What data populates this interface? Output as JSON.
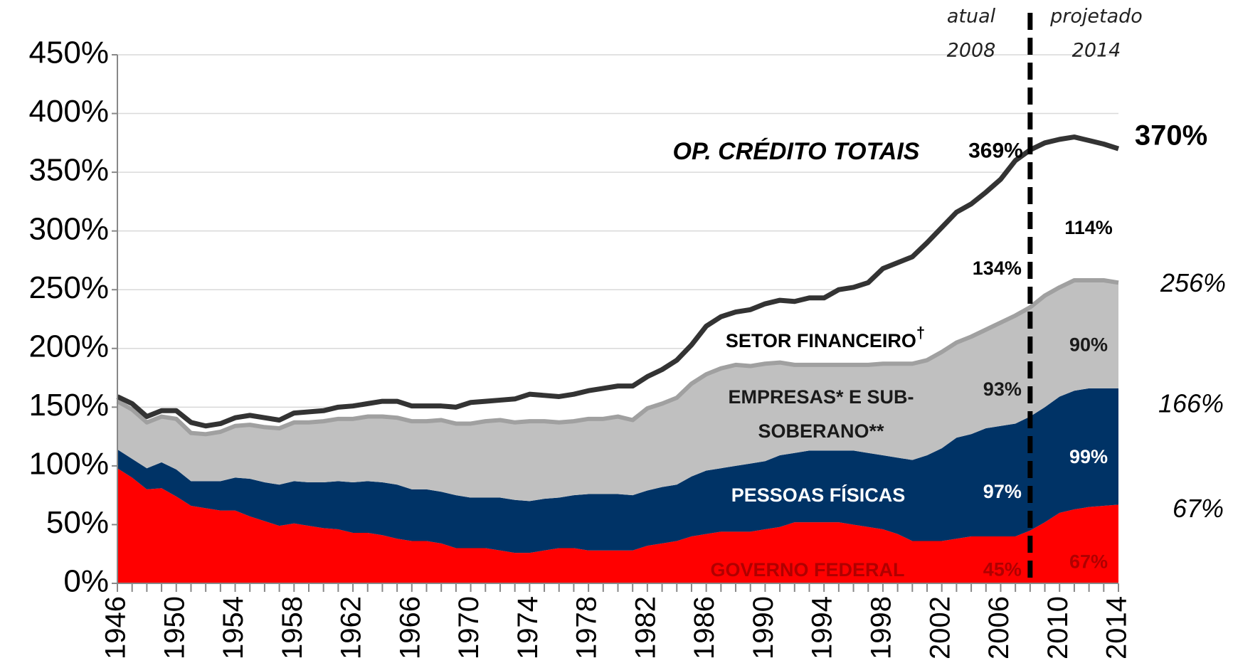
{
  "chart_data": {
    "type": "stacked_area",
    "x": [
      1946,
      1947,
      1948,
      1949,
      1950,
      1951,
      1952,
      1953,
      1954,
      1955,
      1956,
      1957,
      1958,
      1959,
      1960,
      1961,
      1962,
      1963,
      1964,
      1965,
      1966,
      1967,
      1968,
      1969,
      1970,
      1971,
      1972,
      1973,
      1974,
      1975,
      1976,
      1977,
      1978,
      1979,
      1980,
      1981,
      1982,
      1983,
      1984,
      1985,
      1986,
      1987,
      1988,
      1989,
      1990,
      1991,
      1992,
      1993,
      1994,
      1995,
      1996,
      1997,
      1998,
      1999,
      2000,
      2001,
      2002,
      2003,
      2004,
      2005,
      2006,
      2007,
      2008,
      2009,
      2010,
      2011,
      2012,
      2013,
      2014
    ],
    "series": [
      {
        "name": "GOVERNO FEDERAL",
        "color": "#ff0000",
        "label_color": "#b00000",
        "values": [
          98,
          90,
          80,
          81,
          74,
          66,
          64,
          62,
          62,
          57,
          53,
          49,
          51,
          49,
          47,
          46,
          43,
          43,
          41,
          38,
          36,
          36,
          34,
          30,
          30,
          30,
          28,
          26,
          26,
          28,
          30,
          30,
          28,
          28,
          28,
          28,
          32,
          34,
          36,
          40,
          42,
          44,
          44,
          44,
          46,
          48,
          52,
          52,
          52,
          52,
          50,
          48,
          46,
          42,
          36,
          36,
          36,
          38,
          40,
          40,
          40,
          40,
          45,
          52,
          60,
          63,
          65,
          66,
          67
        ],
        "value_labels": [
          null,
          null,
          null,
          null,
          null,
          null,
          null,
          null,
          null,
          null,
          null,
          null,
          null,
          null,
          null,
          null,
          null,
          null,
          null,
          null,
          null,
          null,
          null,
          null,
          null,
          null,
          null,
          null,
          null,
          null,
          null,
          null,
          null,
          null,
          null,
          null,
          null,
          null,
          null,
          null,
          null,
          null,
          null,
          null,
          null,
          null,
          null,
          null,
          null,
          null,
          null,
          null,
          null,
          null,
          null,
          null,
          null,
          null,
          null,
          null,
          null,
          null,
          "45%",
          null,
          null,
          null,
          null,
          null,
          "67%"
        ]
      },
      {
        "name": "PESSOAS FÍSICAS",
        "color": "#003366",
        "label_color": "#ffffff",
        "values": [
          16,
          16,
          18,
          22,
          23,
          21,
          23,
          25,
          28,
          32,
          33,
          35,
          36,
          37,
          39,
          41,
          43,
          44,
          45,
          46,
          44,
          44,
          44,
          45,
          43,
          43,
          45,
          45,
          44,
          44,
          43,
          45,
          48,
          48,
          48,
          47,
          47,
          48,
          48,
          51,
          54,
          54,
          56,
          58,
          58,
          61,
          59,
          61,
          61,
          61,
          63,
          63,
          63,
          65,
          69,
          73,
          79,
          86,
          87,
          92,
          94,
          96,
          97,
          98,
          99,
          101,
          101,
          100,
          99
        ],
        "value_labels": [
          null,
          null,
          null,
          null,
          null,
          null,
          null,
          null,
          null,
          null,
          null,
          null,
          null,
          null,
          null,
          null,
          null,
          null,
          null,
          null,
          null,
          null,
          null,
          null,
          null,
          null,
          null,
          null,
          null,
          null,
          null,
          null,
          null,
          null,
          null,
          null,
          null,
          null,
          null,
          null,
          null,
          null,
          null,
          null,
          null,
          null,
          null,
          null,
          null,
          null,
          null,
          null,
          null,
          null,
          null,
          null,
          null,
          null,
          null,
          null,
          null,
          null,
          "97%",
          null,
          null,
          null,
          null,
          null,
          "99%"
        ]
      },
      {
        "name": "EMPRESAS* E SUB-SOBERANO**",
        "color": "#c0c0c0",
        "line_color": "#a0a0a0",
        "label_color": "#1a1a1a",
        "values": [
          41,
          42,
          39,
          39,
          43,
          41,
          40,
          42,
          44,
          46,
          47,
          48,
          50,
          51,
          52,
          53,
          54,
          55,
          56,
          57,
          58,
          58,
          61,
          61,
          63,
          65,
          66,
          66,
          68,
          66,
          64,
          63,
          64,
          64,
          66,
          64,
          70,
          71,
          74,
          79,
          82,
          85,
          86,
          83,
          83,
          79,
          75,
          73,
          73,
          73,
          73,
          75,
          78,
          80,
          82,
          81,
          82,
          81,
          83,
          84,
          88,
          92,
          93,
          95,
          93,
          94,
          92,
          92,
          90
        ],
        "value_labels": [
          null,
          null,
          null,
          null,
          null,
          null,
          null,
          null,
          null,
          null,
          null,
          null,
          null,
          null,
          null,
          null,
          null,
          null,
          null,
          null,
          null,
          null,
          null,
          null,
          null,
          null,
          null,
          null,
          null,
          null,
          null,
          null,
          null,
          null,
          null,
          null,
          null,
          null,
          null,
          null,
          null,
          null,
          null,
          null,
          null,
          null,
          null,
          null,
          null,
          null,
          null,
          null,
          null,
          null,
          null,
          null,
          null,
          null,
          null,
          null,
          null,
          null,
          "93%",
          null,
          null,
          null,
          null,
          null,
          "90%"
        ]
      },
      {
        "name": "SETOR FINANCEIRO†",
        "color": "#ffffff",
        "line_color": "#333333",
        "label_color": "#000000",
        "values": [
          4,
          5,
          5,
          5,
          7,
          9,
          7,
          7,
          7,
          8,
          8,
          7,
          8,
          9,
          9,
          10,
          11,
          11,
          13,
          14,
          13,
          13,
          12,
          14,
          18,
          17,
          17,
          20,
          23,
          22,
          22,
          23,
          24,
          26,
          26,
          29,
          27,
          29,
          32,
          33,
          41,
          44,
          45,
          48,
          51,
          53,
          54,
          57,
          57,
          64,
          66,
          70,
          81,
          86,
          91,
          100,
          106,
          111,
          113,
          117,
          122,
          132,
          134,
          130,
          126,
          122,
          119,
          116,
          114
        ],
        "value_labels": [
          null,
          null,
          null,
          null,
          null,
          null,
          null,
          null,
          null,
          null,
          null,
          null,
          null,
          null,
          null,
          null,
          null,
          null,
          null,
          null,
          null,
          null,
          null,
          null,
          null,
          null,
          null,
          null,
          null,
          null,
          null,
          null,
          null,
          null,
          null,
          null,
          null,
          null,
          null,
          null,
          null,
          null,
          null,
          null,
          null,
          null,
          null,
          null,
          null,
          null,
          null,
          null,
          null,
          null,
          null,
          null,
          null,
          null,
          null,
          null,
          null,
          null,
          "134%",
          null,
          null,
          null,
          null,
          null,
          "114%"
        ]
      }
    ],
    "total_label": "OP. CRÉDITO TOTAIS",
    "annotations": [
      {
        "text": "369%",
        "x": 2008,
        "value": 369
      },
      {
        "text": "370%",
        "x": 2014,
        "value": 370
      },
      {
        "text": "256%",
        "x": 2014,
        "value": 256
      },
      {
        "text": "166%",
        "x": 2014,
        "value": 166
      },
      {
        "text": "67%",
        "x": 2014,
        "value": 67
      }
    ],
    "divider": {
      "x": 2008,
      "left_label": [
        "atual",
        "2008"
      ],
      "right_label": [
        "projetado",
        "2014"
      ]
    },
    "xlim": [
      1946,
      2014
    ],
    "xticks": [
      1946,
      1950,
      1954,
      1958,
      1962,
      1966,
      1970,
      1974,
      1978,
      1982,
      1986,
      1990,
      1994,
      1998,
      2002,
      2006,
      2010,
      2014
    ],
    "ylim": [
      0,
      450
    ],
    "yticks": [
      {
        "value": 0,
        "label": "0%"
      },
      {
        "value": 50,
        "label": "50%"
      },
      {
        "value": 100,
        "label": "100%"
      },
      {
        "value": 150,
        "label": "150%"
      },
      {
        "value": 200,
        "label": "200%"
      },
      {
        "value": 250,
        "label": "250%"
      },
      {
        "value": 300,
        "label": "300%"
      },
      {
        "value": 350,
        "label": "350%"
      },
      {
        "value": 400,
        "label": "400%"
      },
      {
        "value": 450,
        "label": "450%"
      }
    ],
    "grid": true
  }
}
